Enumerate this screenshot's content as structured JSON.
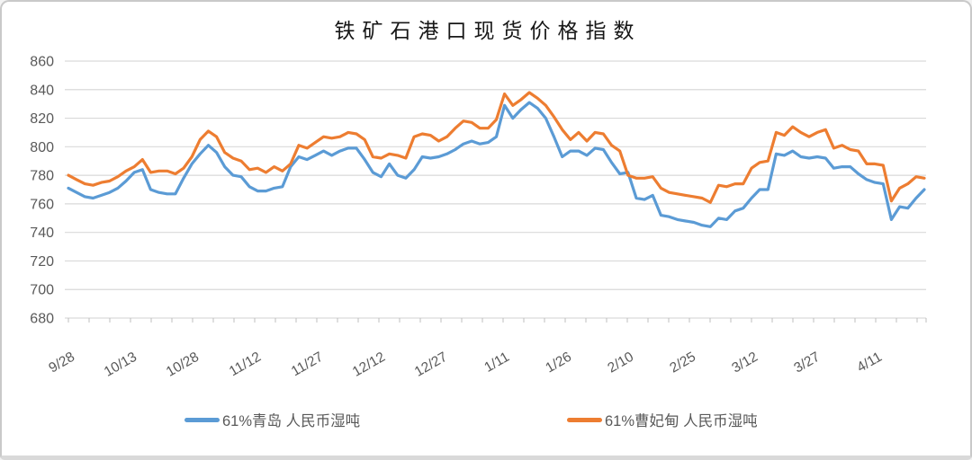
{
  "chart_data": {
    "type": "line",
    "title": "铁矿石港口现货价格指数",
    "xlabel": "",
    "ylabel": "",
    "ylim": [
      680,
      860
    ],
    "y_ticks": [
      860,
      840,
      820,
      800,
      780,
      760,
      740,
      720,
      700,
      680
    ],
    "x_tick_labels": [
      "9/28",
      "10/13",
      "10/28",
      "11/12",
      "11/27",
      "12/12",
      "12/27",
      "1/11",
      "1/26",
      "2/10",
      "2/25",
      "3/12",
      "3/27",
      "4/11"
    ],
    "x_label_interval_days": 15,
    "minor_tick_interval_days": 5,
    "sample_interval_days": 2,
    "grid": "horizontal",
    "gridline_color": "#d9d9d9",
    "axis_text_color": "#595959",
    "legend_position": "bottom",
    "series": [
      {
        "name": "61%青岛 人民币湿吨",
        "color": "#5B9BD5",
        "values": [
          771,
          768,
          765,
          764,
          766,
          768,
          771,
          776,
          782,
          784,
          770,
          768,
          767,
          767,
          778,
          788,
          795,
          801,
          796,
          786,
          780,
          779,
          772,
          769,
          769,
          771,
          772,
          786,
          793,
          791,
          794,
          797,
          794,
          797,
          799,
          799,
          791,
          782,
          779,
          788,
          780,
          778,
          784,
          793,
          792,
          793,
          795,
          798,
          802,
          804,
          802,
          803,
          807,
          829,
          820,
          826,
          831,
          827,
          820,
          807,
          793,
          797,
          797,
          794,
          799,
          798,
          789,
          781,
          782,
          764,
          763,
          766,
          752,
          751,
          749,
          748,
          747,
          745,
          744,
          750,
          749,
          755,
          757,
          764,
          770,
          770,
          795,
          794,
          797,
          793,
          792,
          793,
          792,
          785,
          786,
          786,
          781,
          777,
          775,
          774,
          749,
          758,
          757,
          764,
          770
        ]
      },
      {
        "name": "61%曹妃甸 人民币湿吨",
        "color": "#ED7D31",
        "values": [
          780,
          777,
          774,
          773,
          775,
          776,
          779,
          783,
          786,
          791,
          782,
          783,
          783,
          781,
          785,
          793,
          805,
          811,
          807,
          796,
          792,
          790,
          784,
          785,
          782,
          786,
          783,
          788,
          801,
          799,
          803,
          807,
          806,
          807,
          810,
          809,
          805,
          793,
          792,
          795,
          794,
          792,
          807,
          809,
          808,
          804,
          807,
          813,
          818,
          817,
          813,
          813,
          819,
          837,
          829,
          833,
          838,
          834,
          829,
          821,
          812,
          805,
          810,
          804,
          810,
          809,
          801,
          797,
          780,
          778,
          778,
          779,
          771,
          768,
          767,
          766,
          765,
          764,
          761,
          773,
          772,
          774,
          774,
          785,
          789,
          790,
          810,
          808,
          814,
          810,
          807,
          810,
          812,
          799,
          801,
          798,
          797,
          788,
          788,
          787,
          762,
          771,
          774,
          779,
          778
        ]
      }
    ]
  }
}
